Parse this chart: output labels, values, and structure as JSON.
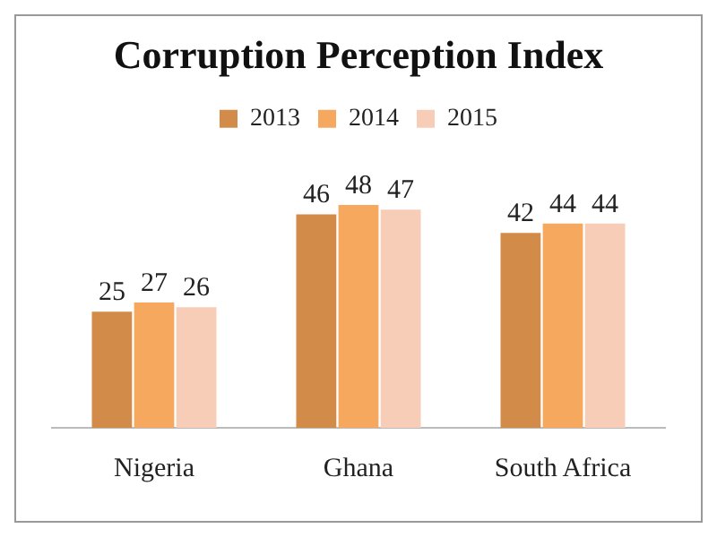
{
  "chart_data": {
    "type": "bar",
    "title": "Corruption Perception Index",
    "categories": [
      "Nigeria",
      "Ghana",
      "South Africa"
    ],
    "series": [
      {
        "name": "2013",
        "color": "#d38b4a",
        "values": [
          25,
          46,
          42
        ]
      },
      {
        "name": "2014",
        "color": "#f6a85f",
        "values": [
          27,
          48,
          44
        ]
      },
      {
        "name": "2015",
        "color": "#f8cdb8",
        "values": [
          26,
          47,
          44
        ]
      }
    ],
    "data_labels": true,
    "legend": "top",
    "grid": false
  }
}
